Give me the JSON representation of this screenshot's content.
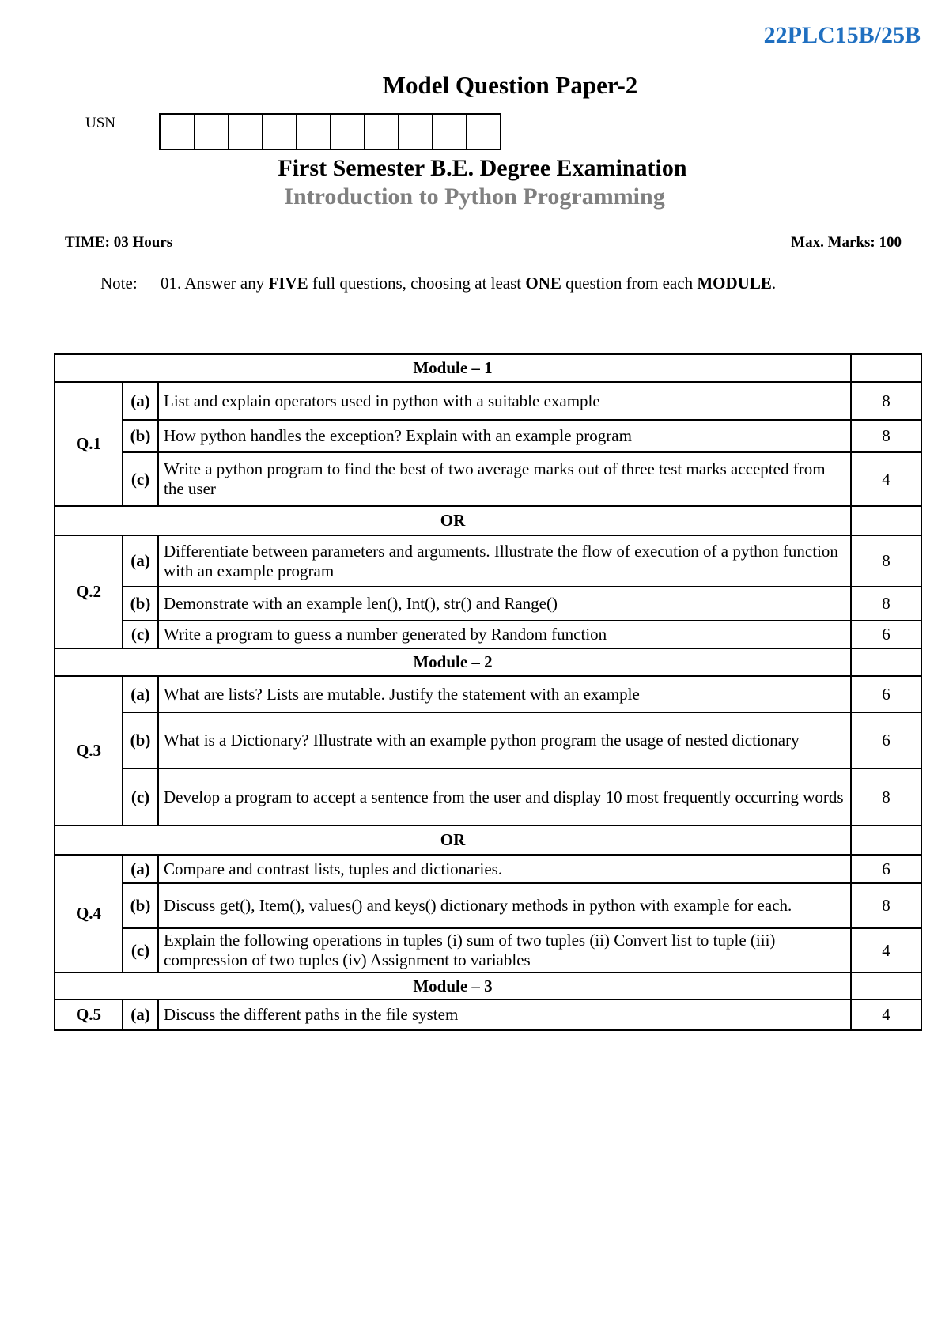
{
  "header": {
    "course_code": "22PLC15B/25B",
    "title": "Model Question Paper-2",
    "usn_label": "USN",
    "exam": "First Semester B.E. Degree Examination",
    "subject": "Introduction to Python Programming",
    "time": "TIME: 03 Hours",
    "max_marks": "Max. Marks: 100",
    "note_label": "Note:",
    "note_parts": [
      "01. Answer any ",
      "FIVE",
      " full questions, choosing at least ",
      "ONE",
      " question from each ",
      "MODULE",
      "."
    ]
  },
  "table": {
    "rows": [
      {
        "type": "header",
        "text": "Module – 1"
      },
      {
        "type": "question",
        "q": "Q.1",
        "parts": [
          {
            "p": "(a)",
            "text": "List and explain operators used in python with a suitable example",
            "marks": "8"
          },
          {
            "p": "(b)",
            "text": "How python handles the exception? Explain with an example program",
            "marks": "8"
          },
          {
            "p": "(c)",
            "text": "Write a python program to find the best of two average marks out of three test marks accepted from the user",
            "marks": "4"
          }
        ]
      },
      {
        "type": "header",
        "text": "OR"
      },
      {
        "type": "question",
        "q": "Q.2",
        "parts": [
          {
            "p": "(a)",
            "text": "Differentiate between parameters and arguments. Illustrate the flow of execution of a python function with an example program",
            "marks": "8"
          },
          {
            "p": "(b)",
            "text": "Demonstrate with an example len(), Int(), str() and Range()",
            "marks": "8"
          },
          {
            "p": "(c)",
            "text": "Write a program to guess a number generated by Random function",
            "marks": "6"
          }
        ]
      },
      {
        "type": "header",
        "text": "Module – 2"
      },
      {
        "type": "question",
        "q": "Q.3",
        "parts": [
          {
            "p": "(a)",
            "text": "What are lists? Lists are mutable. Justify the statement with an example",
            "marks": "6"
          },
          {
            "p": "(b)",
            "text": "What is a Dictionary? Illustrate with an example python program the usage of nested dictionary",
            "marks": "6"
          },
          {
            "p": "(c)",
            "text": "Develop a program to accept a sentence from the user and display 10 most frequently occurring words",
            "marks": "8"
          }
        ]
      },
      {
        "type": "header",
        "text": "OR"
      },
      {
        "type": "question",
        "q": "Q.4",
        "parts": [
          {
            "p": "(a)",
            "text": "Compare and contrast lists, tuples and dictionaries.",
            "marks": "6"
          },
          {
            "p": "(b)",
            "text": "Discuss get(), Item(), values() and keys() dictionary methods in python with example for each.",
            "marks": "8"
          },
          {
            "p": "(c)",
            "text": "Explain the following operations in tuples (i) sum of two tuples (ii) Convert list to tuple (iii) compression of two tuples (iv) Assignment to variables",
            "marks": "4"
          }
        ]
      },
      {
        "type": "header",
        "text": "Module – 3"
      },
      {
        "type": "question",
        "q": "Q.5",
        "parts": [
          {
            "p": "(a)",
            "text": "Discuss the different paths in the file system",
            "marks": "4"
          }
        ]
      }
    ]
  }
}
